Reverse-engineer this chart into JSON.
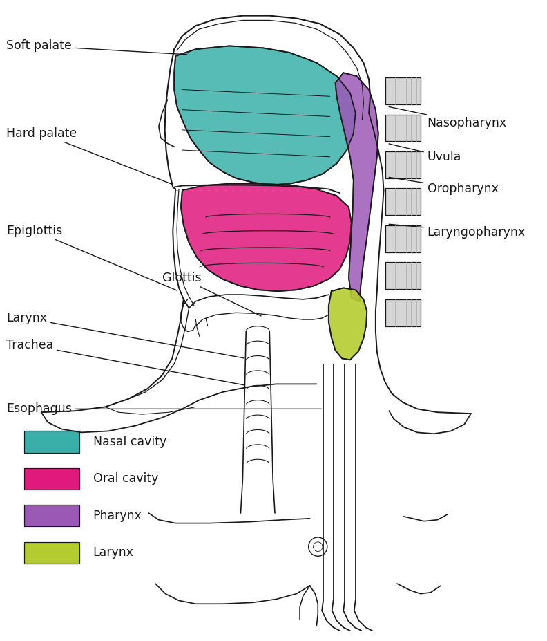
{
  "background_color": "#ffffff",
  "nasal_cavity_color": "#3aafaa",
  "oral_cavity_color": "#e0197d",
  "pharynx_color": "#9b59b6",
  "larynx_color": "#b5cc30",
  "outline_color": "#1a1a1a",
  "label_color": "#1a1a1a",
  "legend_items": [
    {
      "label": "Nasal cavity",
      "color": "#3aafaa"
    },
    {
      "label": "Oral cavity",
      "color": "#e0197d"
    },
    {
      "label": "Pharynx",
      "color": "#9b59b6"
    },
    {
      "label": "Larynx",
      "color": "#b5cc30"
    }
  ],
  "figsize": [
    7.92,
    9.27
  ],
  "dpi": 100
}
